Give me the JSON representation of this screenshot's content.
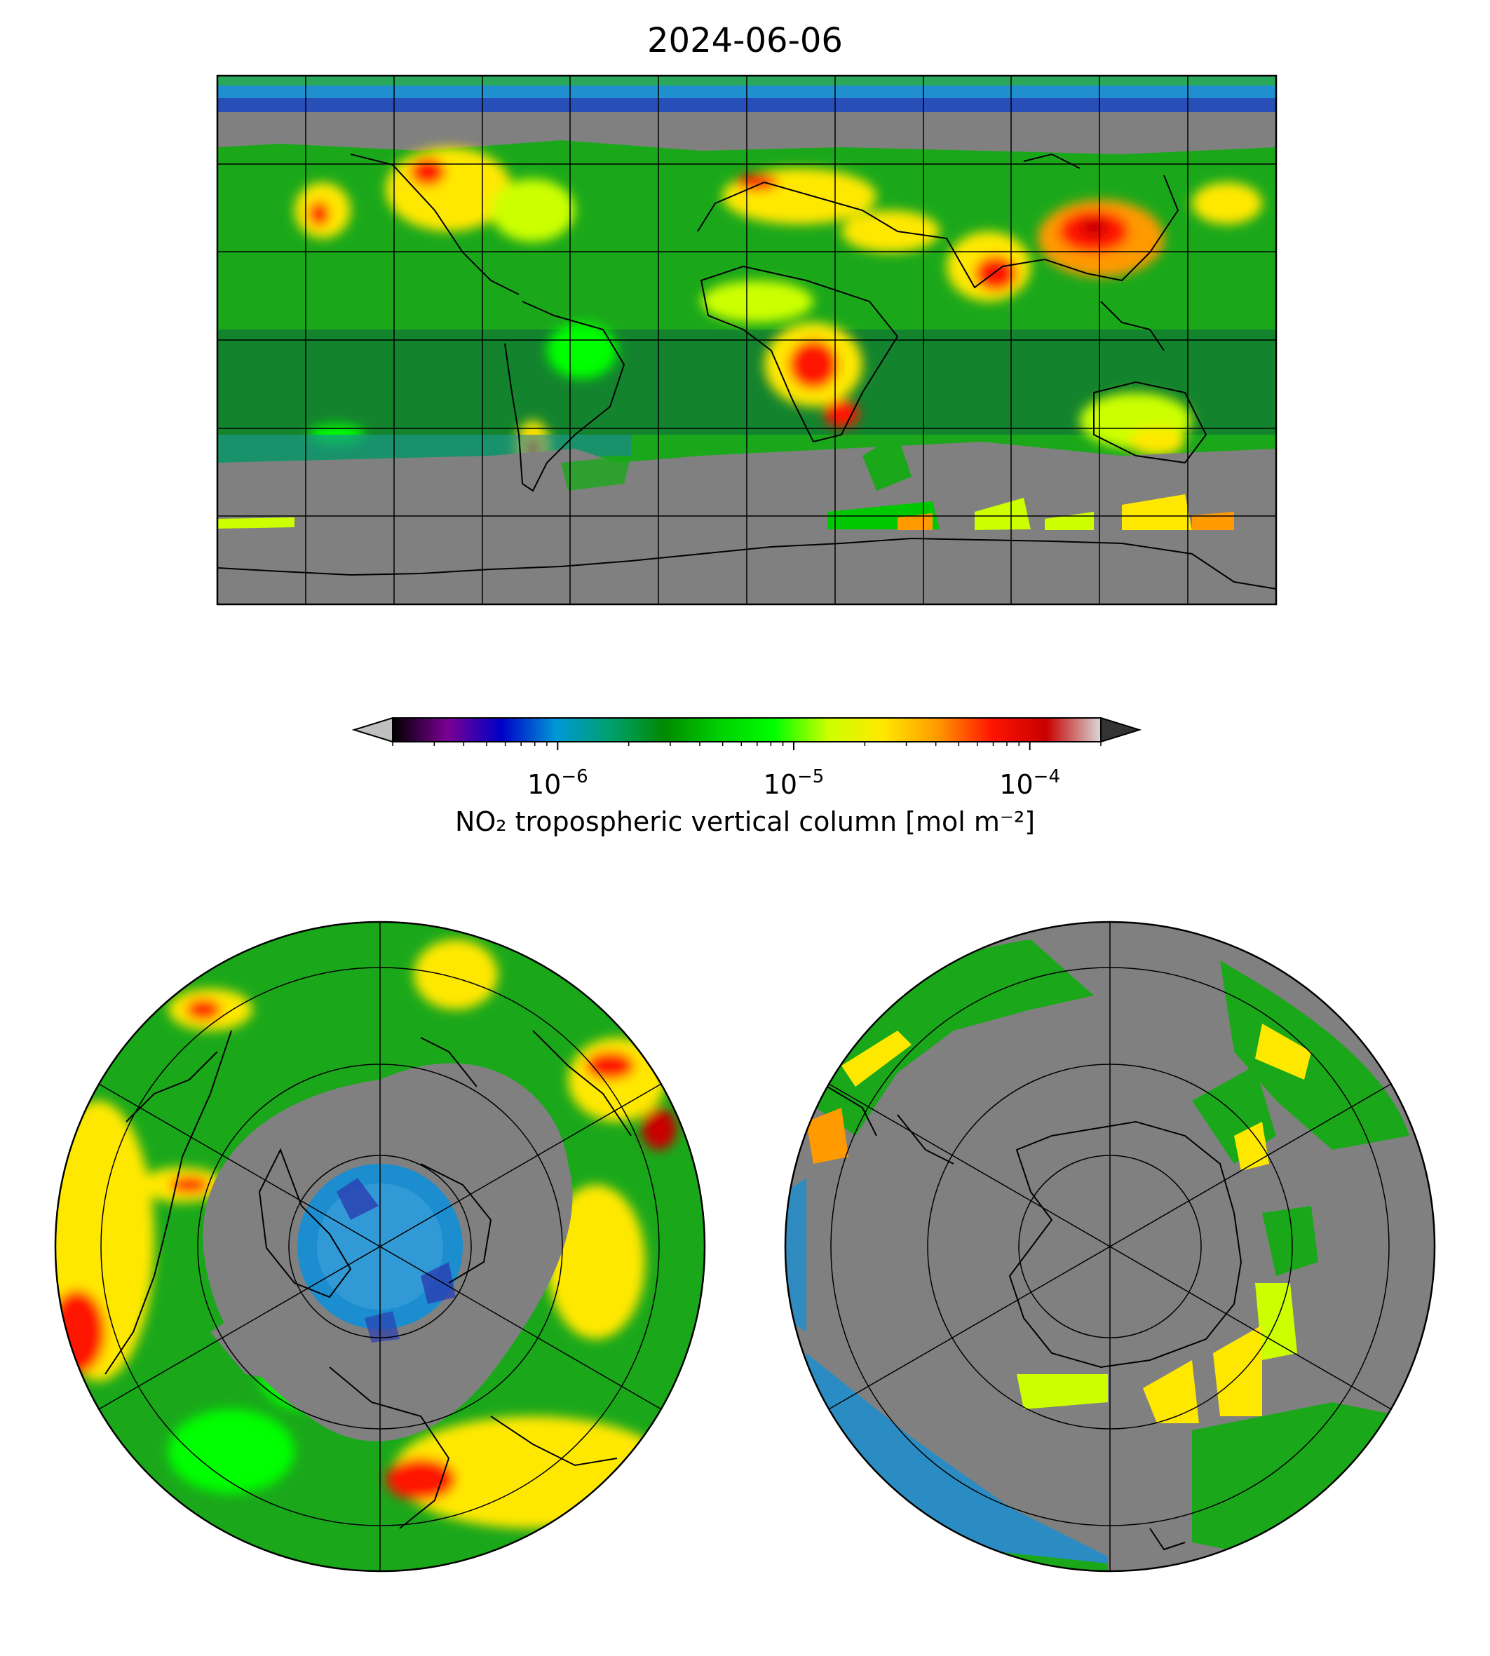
{
  "title": "2024-06-06",
  "colorbar": {
    "label": "NO₂ tropospheric vertical column [mol m⁻²]",
    "scale": "log",
    "range": [
      2e-07,
      0.0002
    ],
    "ticks": [
      {
        "base": "10",
        "exp": "−6",
        "value": 1e-06
      },
      {
        "base": "10",
        "exp": "−5",
        "value": 1e-05
      },
      {
        "base": "10",
        "exp": "−4",
        "value": 0.0001
      }
    ],
    "extend": "both",
    "colormap_stops": [
      "#000000",
      "#7a0091",
      "#0000c8",
      "#0098d6",
      "#00a06e",
      "#008a00",
      "#00d000",
      "#00ff00",
      "#ccff00",
      "#ffe800",
      "#ff9a00",
      "#ff1400",
      "#c80000",
      "#d8d8d8"
    ],
    "under_color": "#c0c0c0",
    "over_color": "#333333"
  },
  "colors": {
    "no_data": "#808080",
    "coastline": "#000000",
    "gridline": "#000000"
  },
  "panels": {
    "global": {
      "projection": "PlateCarree",
      "meridian_step_deg": 30,
      "parallel_step_deg": 30
    },
    "north_polar": {
      "projection": "NorthPolarStereo",
      "circles": 4,
      "spokes": 6
    },
    "south_polar": {
      "projection": "SouthPolarStereo",
      "circles": 4,
      "spokes": 6
    }
  }
}
